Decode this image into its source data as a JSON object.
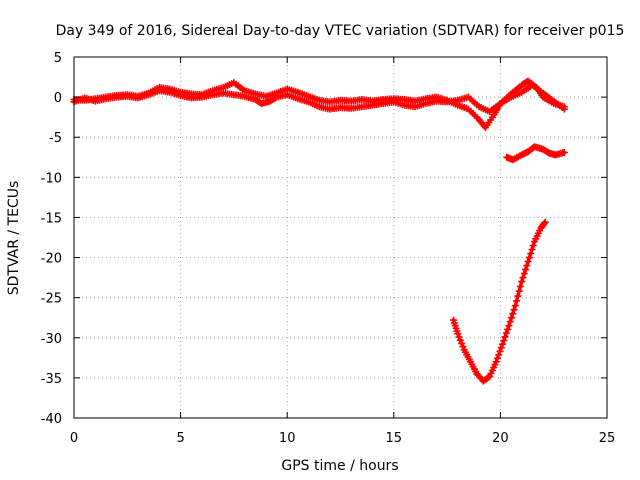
{
  "chart_data": {
    "type": "scatter",
    "title": "Day 349 of 2016, Sidereal Day-to-day VTEC variation (SDTVAR) for receiver p015",
    "xlabel": "GPS time / hours",
    "ylabel": "SDTVAR / TECUs",
    "xlim": [
      0,
      25
    ],
    "ylim": [
      -40,
      5
    ],
    "xticks": [
      0,
      5,
      10,
      15,
      20,
      25
    ],
    "yticks": [
      5,
      0,
      -5,
      -10,
      -15,
      -20,
      -25,
      -30,
      -35,
      -40
    ],
    "grid": true,
    "marker": "plus",
    "color": "#ff0000",
    "series": [
      {
        "points": [
          [
            0.0,
            -0.3
          ],
          [
            0.5,
            -0.4
          ],
          [
            1.0,
            -0.2
          ],
          [
            1.5,
            0.0
          ],
          [
            2.0,
            0.2
          ],
          [
            2.5,
            0.3
          ],
          [
            3.0,
            0.1
          ],
          [
            3.5,
            0.5
          ],
          [
            4.0,
            1.2
          ],
          [
            4.5,
            1.0
          ],
          [
            5.0,
            0.6
          ],
          [
            5.5,
            0.4
          ],
          [
            6.0,
            0.3
          ],
          [
            6.5,
            0.8
          ],
          [
            7.0,
            1.2
          ],
          [
            7.5,
            1.8
          ],
          [
            8.0,
            0.8
          ],
          [
            8.5,
            0.4
          ],
          [
            9.0,
            0.1
          ],
          [
            9.5,
            0.5
          ],
          [
            10.0,
            1.0
          ],
          [
            10.5,
            0.6
          ],
          [
            11.0,
            0.1
          ],
          [
            11.5,
            -0.4
          ],
          [
            12.0,
            -0.6
          ],
          [
            12.5,
            -0.4
          ],
          [
            13.0,
            -0.5
          ],
          [
            13.5,
            -0.3
          ],
          [
            14.0,
            -0.5
          ],
          [
            14.5,
            -0.3
          ],
          [
            15.0,
            -0.2
          ],
          [
            15.5,
            -0.3
          ],
          [
            16.0,
            -0.5
          ],
          [
            16.5,
            -0.2
          ],
          [
            17.0,
            0.0
          ],
          [
            17.5,
            -0.4
          ],
          [
            18.0,
            -1.0
          ],
          [
            18.5,
            -1.5
          ],
          [
            19.0,
            -2.8
          ],
          [
            19.3,
            -3.8
          ],
          [
            19.7,
            -2.2
          ],
          [
            20.0,
            -0.8
          ],
          [
            20.5,
            0.4
          ],
          [
            21.0,
            1.5
          ],
          [
            21.3,
            2.0
          ],
          [
            21.7,
            1.2
          ],
          [
            22.0,
            0.0
          ],
          [
            22.5,
            -0.8
          ],
          [
            23.0,
            -1.2
          ]
        ]
      },
      {
        "points": [
          [
            0.0,
            -0.6
          ],
          [
            0.5,
            -0.1
          ],
          [
            1.0,
            -0.5
          ],
          [
            1.5,
            -0.2
          ],
          [
            2.0,
            0.0
          ],
          [
            2.5,
            0.1
          ],
          [
            3.0,
            -0.1
          ],
          [
            3.5,
            0.3
          ],
          [
            4.0,
            0.8
          ],
          [
            4.5,
            0.6
          ],
          [
            5.0,
            0.2
          ],
          [
            5.5,
            -0.1
          ],
          [
            6.0,
            0.0
          ],
          [
            6.5,
            0.3
          ],
          [
            7.0,
            0.5
          ],
          [
            7.5,
            0.3
          ],
          [
            8.0,
            0.1
          ],
          [
            8.5,
            -0.3
          ],
          [
            8.8,
            -0.8
          ],
          [
            9.2,
            -0.5
          ],
          [
            9.5,
            0.0
          ],
          [
            10.0,
            0.3
          ],
          [
            10.5,
            -0.2
          ],
          [
            11.0,
            -0.6
          ],
          [
            11.5,
            -1.2
          ],
          [
            12.0,
            -1.5
          ],
          [
            12.5,
            -1.3
          ],
          [
            13.0,
            -1.4
          ],
          [
            13.5,
            -1.2
          ],
          [
            14.0,
            -1.0
          ],
          [
            14.5,
            -0.8
          ],
          [
            15.0,
            -0.6
          ],
          [
            15.5,
            -1.0
          ],
          [
            16.0,
            -1.2
          ],
          [
            16.5,
            -0.8
          ],
          [
            17.0,
            -0.5
          ],
          [
            17.5,
            -0.6
          ],
          [
            18.0,
            -0.4
          ],
          [
            18.5,
            0.0
          ],
          [
            19.0,
            -1.2
          ],
          [
            19.5,
            -1.8
          ],
          [
            20.0,
            -0.8
          ],
          [
            20.5,
            0.0
          ],
          [
            21.0,
            0.6
          ],
          [
            21.5,
            1.5
          ],
          [
            22.0,
            0.5
          ],
          [
            22.5,
            -0.5
          ],
          [
            23.0,
            -1.5
          ]
        ]
      },
      {
        "points": [
          [
            20.3,
            -7.5
          ],
          [
            20.6,
            -7.8
          ],
          [
            21.0,
            -7.2
          ],
          [
            21.3,
            -6.8
          ],
          [
            21.6,
            -6.2
          ],
          [
            22.0,
            -6.5
          ],
          [
            22.3,
            -7.0
          ],
          [
            22.6,
            -7.2
          ],
          [
            23.0,
            -6.9
          ]
        ]
      },
      {
        "points": [
          [
            17.8,
            -27.8
          ],
          [
            18.0,
            -29.5
          ],
          [
            18.3,
            -31.5
          ],
          [
            18.6,
            -33.0
          ],
          [
            18.9,
            -34.5
          ],
          [
            19.2,
            -35.4
          ],
          [
            19.5,
            -34.8
          ],
          [
            19.8,
            -33.0
          ],
          [
            20.1,
            -30.8
          ],
          [
            20.4,
            -28.5
          ],
          [
            20.7,
            -26.0
          ],
          [
            21.0,
            -23.0
          ],
          [
            21.3,
            -20.5
          ],
          [
            21.6,
            -18.0
          ],
          [
            21.9,
            -16.3
          ],
          [
            22.1,
            -15.6
          ]
        ]
      }
    ]
  }
}
